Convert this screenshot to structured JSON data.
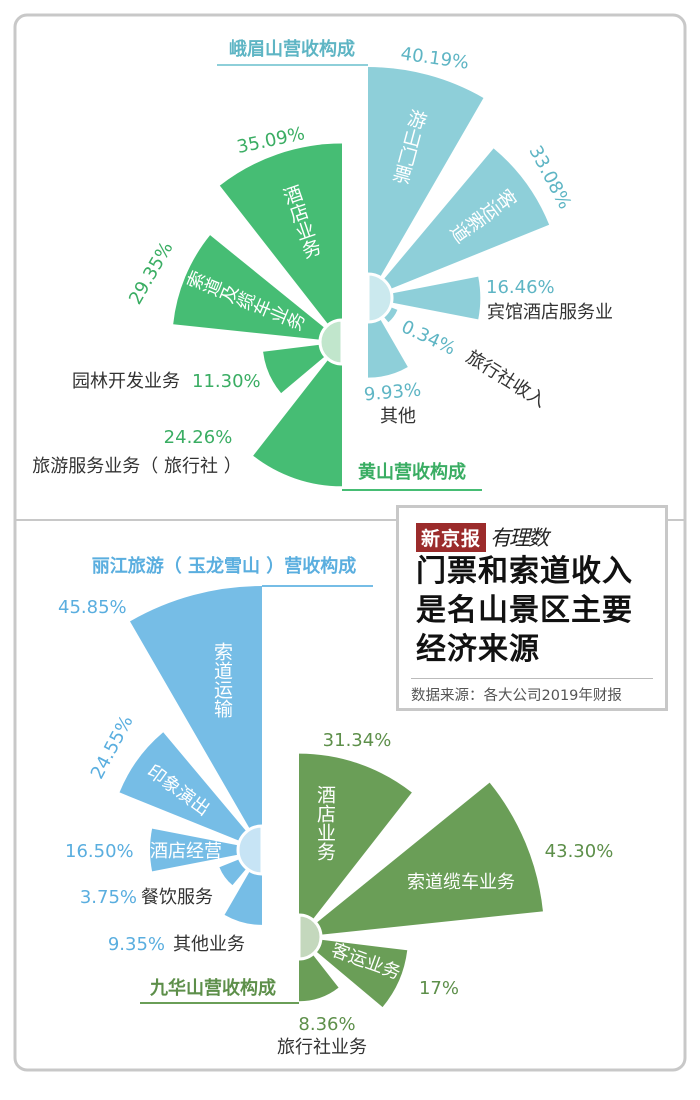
{
  "infobox": {
    "logo": "新京报",
    "logo_sub": "有理数",
    "headline": [
      "门票和索道收入",
      "是名山景区主要",
      "经济来源"
    ],
    "source": "数据来源：各大公司2019年财报",
    "logo_color": "#9b2b2b"
  },
  "colors": {
    "emeishan": {
      "fill": "#8ecfd9",
      "hub": "#cbe9ee",
      "text": "#5eb5c4"
    },
    "huangshan": {
      "fill": "#46bd74",
      "hub": "#c1e6cc",
      "text": "#3aad63"
    },
    "lijiang": {
      "fill": "#76bde6",
      "hub": "#c7e4f5",
      "text": "#5aaedf"
    },
    "jiuhuashan": {
      "fill": "#6a9e57",
      "hub": "#c4d8bd",
      "text": "#5d8f4a"
    }
  },
  "chart_data": [
    {
      "type": "bar",
      "title": "峨眉山营收构成",
      "categories": [
        "游山门票",
        "客运索道",
        "宾馆酒店服务业",
        "旅行社收入",
        "其他"
      ],
      "values": [
        40.19,
        33.08,
        16.46,
        0.34,
        9.93
      ],
      "labels": [
        "40.19%",
        "33.08%",
        "16.46%",
        "0.34%",
        "9.93%"
      ]
    },
    {
      "type": "bar",
      "title": "黄山营收构成",
      "categories": [
        "酒店业务",
        "索道及缆车业务",
        "园林开发业务",
        "旅游服务业务（ 旅行社 ）"
      ],
      "values": [
        35.09,
        29.35,
        11.3,
        24.26
      ],
      "labels": [
        "35.09%",
        "29.35%",
        "11.30%",
        "24.26%"
      ]
    },
    {
      "type": "bar",
      "title": "丽江旅游（ 玉龙雪山 ）营收构成",
      "categories": [
        "索道运输",
        "印象演出",
        "酒店经营",
        "餐饮服务",
        "其他业务"
      ],
      "values": [
        45.85,
        24.55,
        16.5,
        3.75,
        9.35
      ],
      "labels": [
        "45.85%",
        "24.55%",
        "16.50%",
        "3.75%",
        "9.35%"
      ]
    },
    {
      "type": "bar",
      "title": "九华山营收构成",
      "categories": [
        "酒店业务",
        "索道缆车业务",
        "客运业务",
        "旅行社业务"
      ],
      "values": [
        31.34,
        43.3,
        17,
        8.36
      ],
      "labels": [
        "31.34%",
        "43.30%",
        "17%",
        "8.36%"
      ]
    }
  ]
}
